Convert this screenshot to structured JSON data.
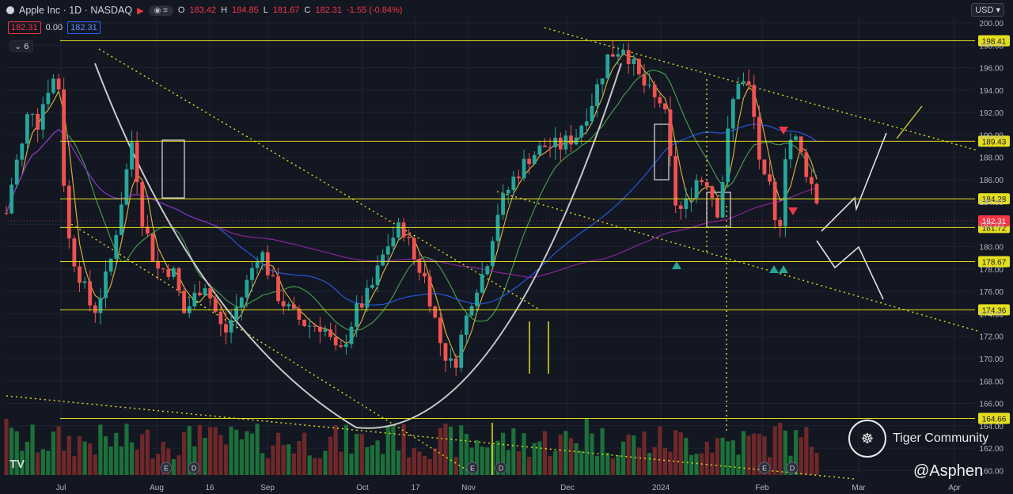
{
  "header": {
    "symbol": "Apple Inc · 1D · NASDAQ",
    "open_label": "O",
    "open": "183.42",
    "high_label": "H",
    "high": "184.85",
    "low_label": "L",
    "low": "181.67",
    "close_label": "C",
    "close": "182.31",
    "change": "-1.55 (-0.84%)",
    "bid": "182.31",
    "spread": "0.00",
    "ask": "182.31",
    "indicator_count": "6",
    "currency": "USD"
  },
  "colors": {
    "up": "#26a69a",
    "down": "#ef5350",
    "bg": "#131722",
    "level": "#e5de1e",
    "ma_fast": "#f5c542",
    "ma_mid": "#4caf50",
    "ma_slow": "#2962ff",
    "ma_long": "#9c27b0"
  },
  "chart_data": {
    "type": "candlestick",
    "y_axis": {
      "ticks": [
        160,
        162,
        164,
        166,
        168,
        170,
        172,
        174,
        176,
        178,
        180,
        182,
        184,
        186,
        188,
        190,
        192,
        194,
        196,
        198,
        200
      ],
      "ylim": [
        159.4,
        201.2
      ]
    },
    "x_axis": {
      "labels": [
        "Jul",
        "Aug",
        "16",
        "Sep",
        "Oct",
        "17",
        "Nov",
        "Dec",
        "2024",
        "Feb",
        "Mar",
        "Apr"
      ]
    },
    "price_levels": [
      "198.41",
      "189.43",
      "184.28",
      "181.72",
      "178.67",
      "174.36",
      "164.66"
    ],
    "current_price": "182.31",
    "events": [
      "E",
      "D",
      "E",
      "D",
      "E",
      "D"
    ]
  },
  "watermark": {
    "brand": "Tiger Community",
    "author": "@Asphen"
  },
  "logo": "TV"
}
